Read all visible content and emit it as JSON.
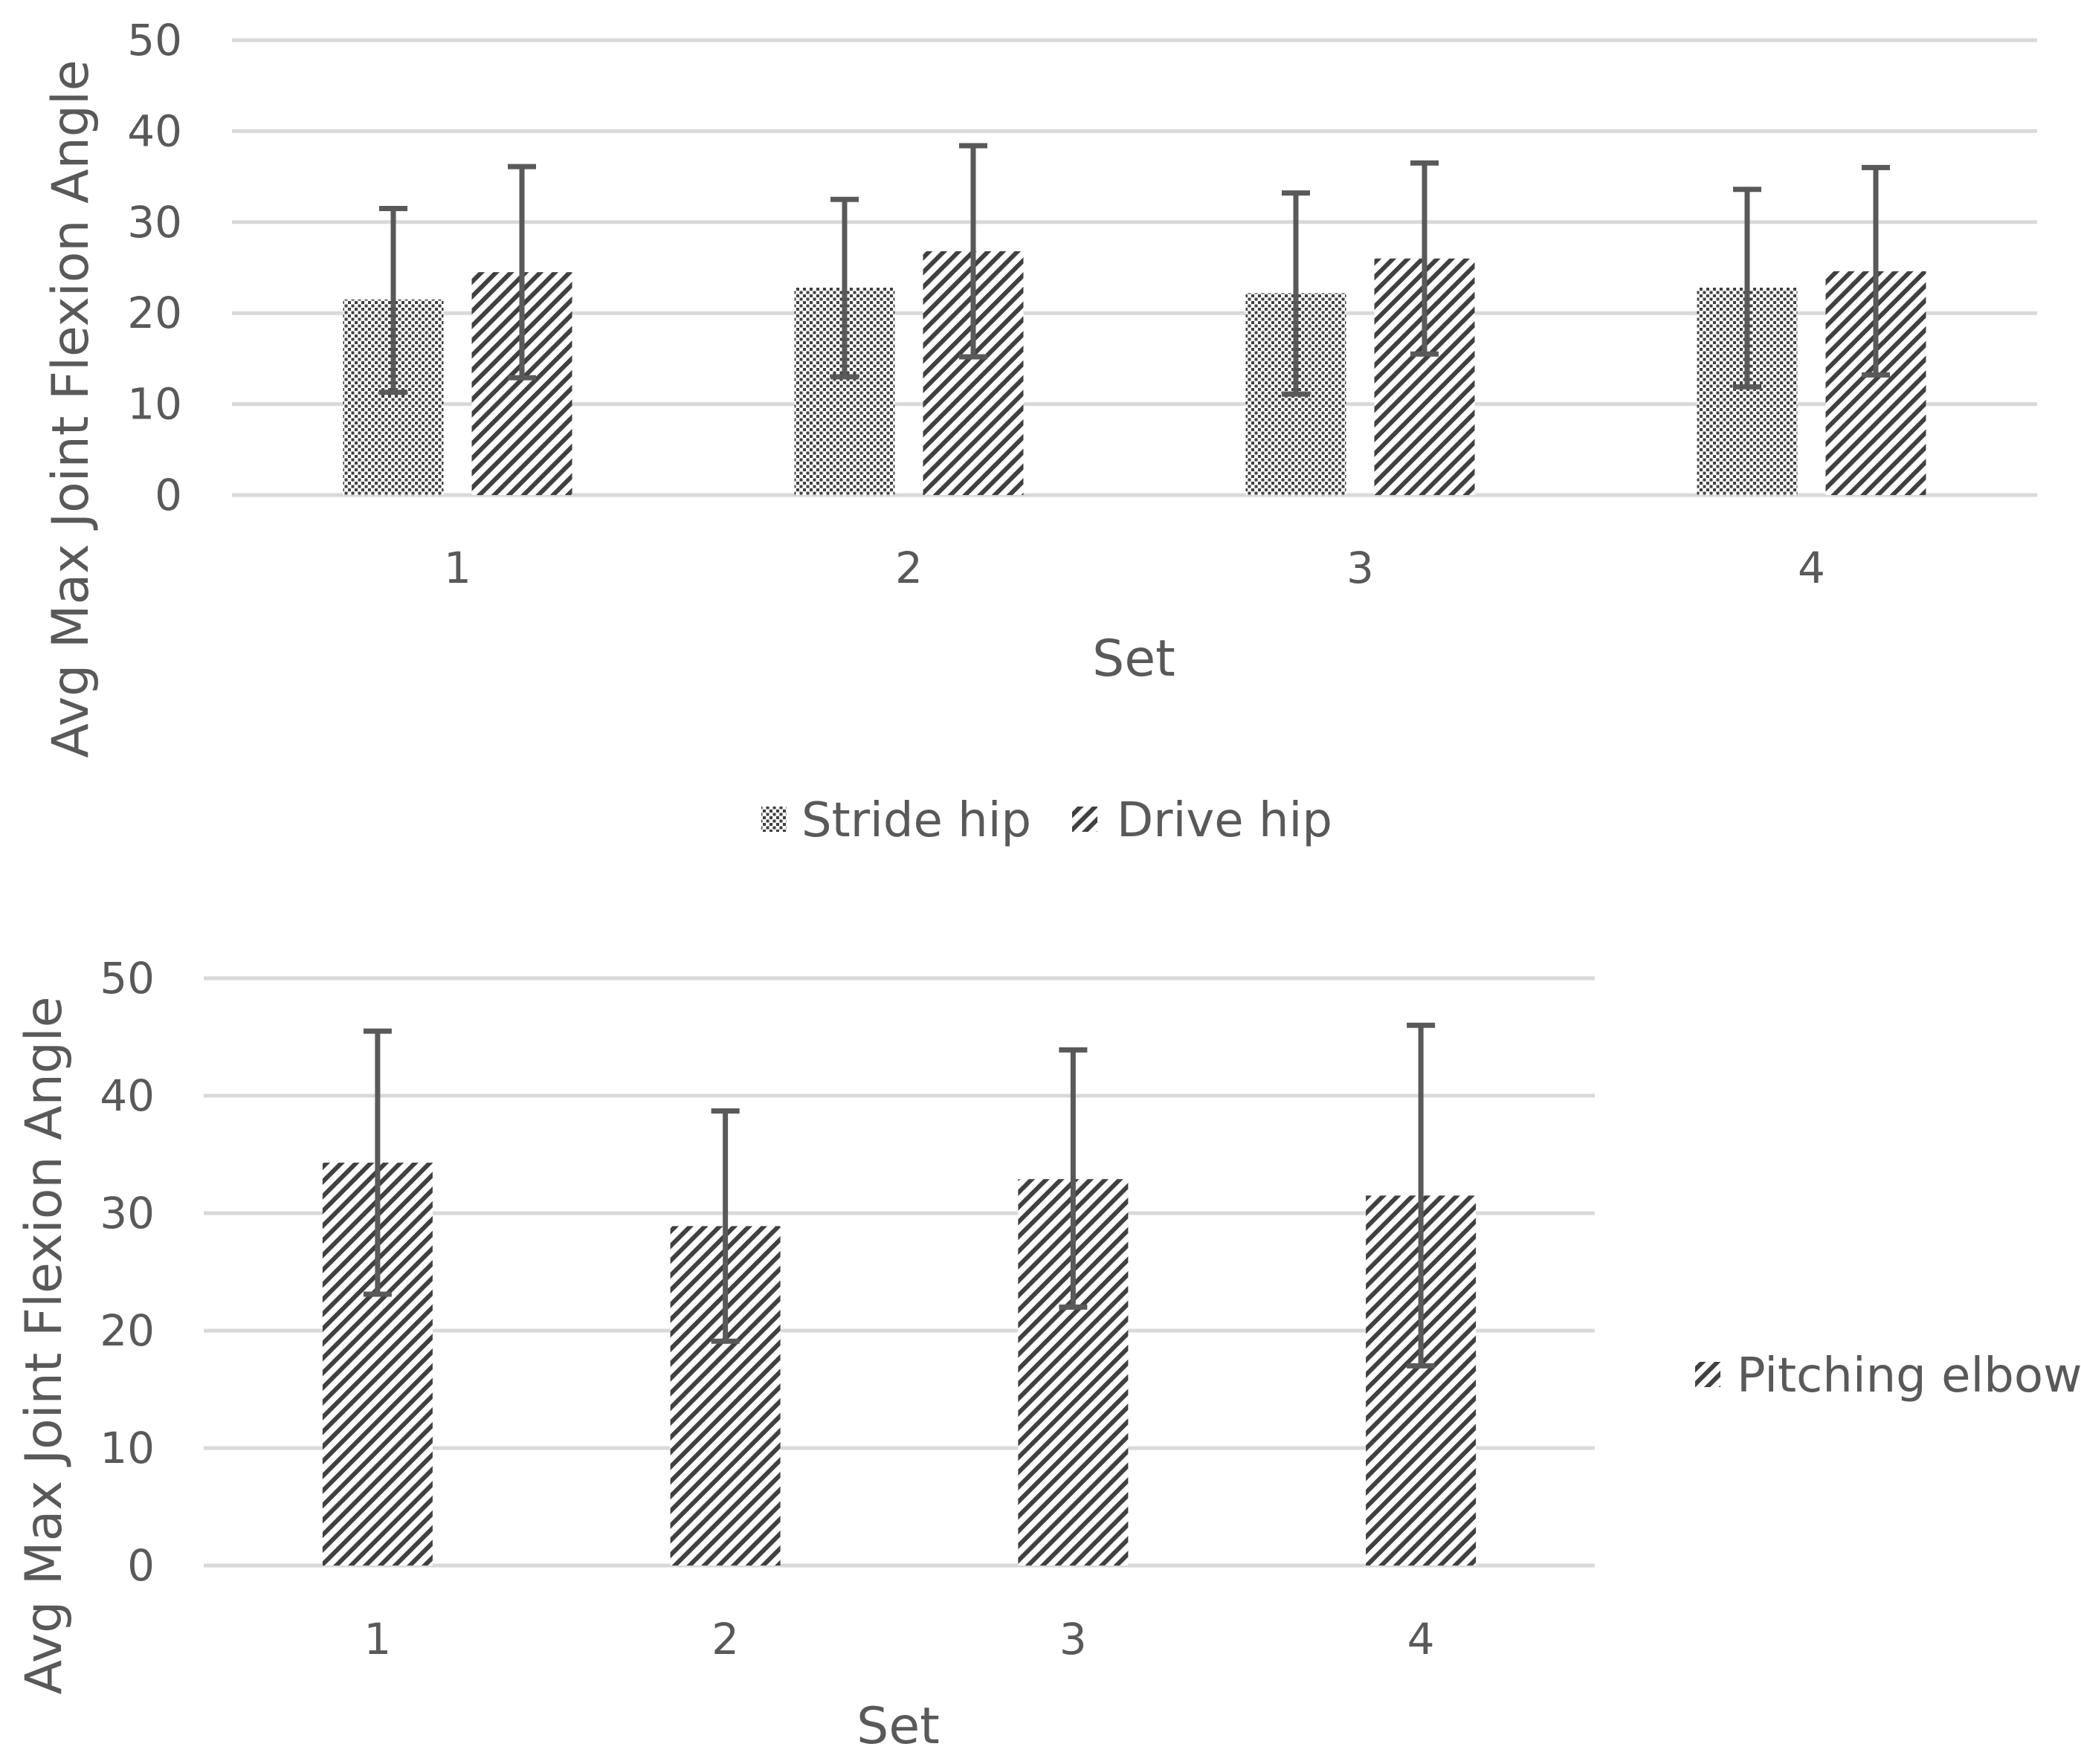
{
  "chart_data": [
    {
      "type": "bar",
      "title": "",
      "xlabel": "Set",
      "ylabel": "Avg Max Joint Flexion Angle",
      "ylim": [
        0,
        50
      ],
      "yticks": [
        0,
        10,
        20,
        30,
        40,
        50
      ],
      "grid": true,
      "legend_position": "bottom",
      "categories": [
        "1",
        "2",
        "3",
        "4"
      ],
      "series": [
        {
          "name": "Stride hip",
          "pattern": "dotted",
          "values": [
            21.5,
            22.8,
            22.2,
            22.8
          ],
          "error_low": [
            11.3,
            13.0,
            11.1,
            11.9
          ],
          "error_high": [
            31.5,
            32.5,
            33.2,
            33.6
          ]
        },
        {
          "name": "Drive hip",
          "pattern": "diagonal-stripes",
          "values": [
            24.5,
            26.8,
            26.0,
            24.6
          ],
          "error_low": [
            12.9,
            15.2,
            15.5,
            13.2
          ],
          "error_high": [
            36.1,
            38.4,
            36.5,
            36.0
          ]
        }
      ]
    },
    {
      "type": "bar",
      "title": "",
      "xlabel": "Set",
      "ylabel": "Avg Max Joint Flexion Angle",
      "ylim": [
        0,
        50
      ],
      "yticks": [
        0,
        10,
        20,
        30,
        40,
        50
      ],
      "grid": true,
      "legend_position": "right",
      "categories": [
        "1",
        "2",
        "3",
        "4"
      ],
      "series": [
        {
          "name": "Pitching elbow",
          "pattern": "diagonal-stripes",
          "values": [
            34.3,
            28.9,
            32.9,
            31.5
          ],
          "error_low": [
            23.1,
            19.1,
            22.0,
            17.0
          ],
          "error_high": [
            45.5,
            38.7,
            43.9,
            46.0
          ]
        }
      ]
    }
  ],
  "colors": {
    "grid": "#d9d9d9",
    "axis_text": "#595959",
    "error_bar": "#595959",
    "bar_pattern": "#404040"
  }
}
